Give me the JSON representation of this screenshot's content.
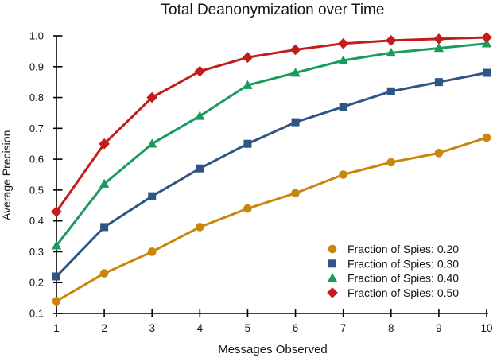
{
  "chart_data": {
    "type": "line",
    "title": "Total Deanonymization over Time",
    "xlabel": "Messages Observed",
    "ylabel": "Average Precision",
    "x": [
      1,
      2,
      3,
      4,
      5,
      6,
      7,
      8,
      9,
      10
    ],
    "xlim": [
      1,
      10
    ],
    "ylim": [
      0.1,
      1.0
    ],
    "xticks": [
      "1",
      "2",
      "3",
      "4",
      "5",
      "6",
      "7",
      "8",
      "9",
      "10"
    ],
    "yticks": [
      "0.1",
      "0.2",
      "0.3",
      "0.4",
      "0.5",
      "0.6",
      "0.7",
      "0.8",
      "0.9",
      "1.0"
    ],
    "grid": false,
    "legend": {
      "position": "lower-right",
      "frame": false
    },
    "series": [
      {
        "name": "Fraction of Spies: 0.20",
        "marker": "circle",
        "color": "#C8860D",
        "values": [
          0.14,
          0.23,
          0.3,
          0.38,
          0.44,
          0.49,
          0.55,
          0.59,
          0.62,
          0.67
        ]
      },
      {
        "name": "Fraction of Spies: 0.30",
        "marker": "square",
        "color": "#2E5583",
        "values": [
          0.22,
          0.38,
          0.48,
          0.57,
          0.65,
          0.72,
          0.77,
          0.82,
          0.85,
          0.88
        ]
      },
      {
        "name": "Fraction of Spies: 0.40",
        "marker": "triangle",
        "color": "#189B5B",
        "values": [
          0.32,
          0.52,
          0.65,
          0.74,
          0.84,
          0.88,
          0.92,
          0.945,
          0.96,
          0.975
        ]
      },
      {
        "name": "Fraction of Spies: 0.50",
        "marker": "diamond",
        "color": "#C41B1B",
        "values": [
          0.43,
          0.65,
          0.8,
          0.885,
          0.93,
          0.955,
          0.975,
          0.985,
          0.99,
          0.995
        ]
      }
    ],
    "axis_color": "#000000",
    "text_color": "#141414",
    "background": "#FFFFFF"
  }
}
